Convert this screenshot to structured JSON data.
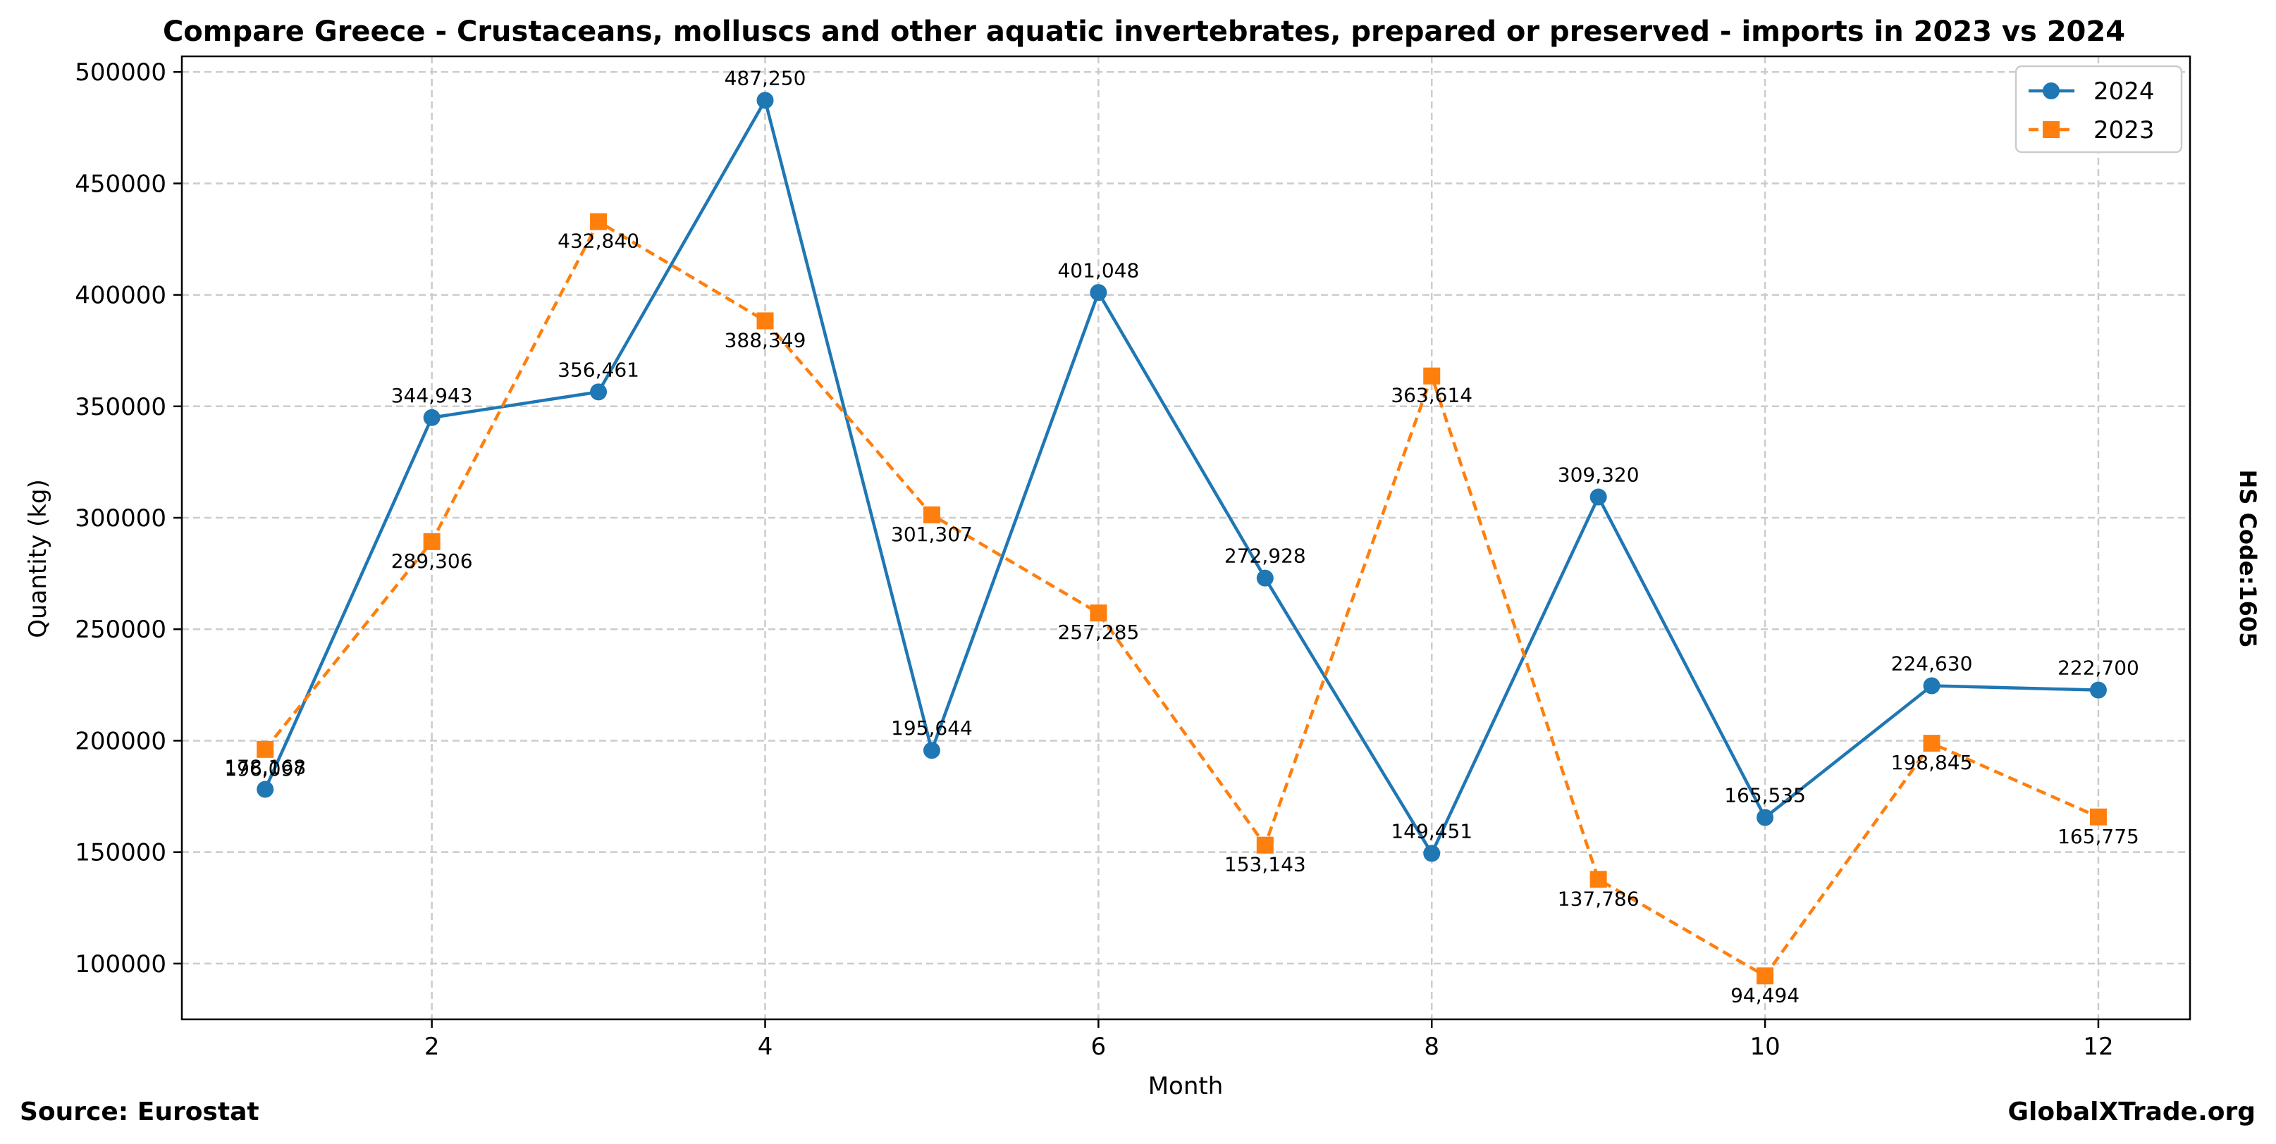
{
  "chart_data": {
    "type": "line",
    "title": "Compare Greece - Crustaceans, molluscs and other aquatic invertebrates, prepared or preserved - imports in 2023 vs 2024",
    "xlabel": "Month",
    "ylabel": "Quantity (kg)",
    "x": [
      1,
      2,
      3,
      4,
      5,
      6,
      7,
      8,
      9,
      10,
      11,
      12
    ],
    "xlim": [
      0.5,
      12.55
    ],
    "ylim": [
      75000,
      507000
    ],
    "xticks": [
      2,
      4,
      6,
      8,
      10,
      12
    ],
    "yticks": [
      100000,
      150000,
      200000,
      250000,
      300000,
      350000,
      400000,
      450000,
      500000
    ],
    "grid": true,
    "legend_position": "top-right",
    "series": [
      {
        "name": "2024",
        "color": "#1f77b4",
        "marker": "circle",
        "line_style": "solid",
        "values": [
          178168,
          344943,
          356461,
          487250,
          195644,
          401048,
          272928,
          149451,
          309320,
          165535,
          224630,
          222700
        ],
        "labels": [
          "178,168",
          "344,943",
          "356,461",
          "487,250",
          "195,644",
          "401,048",
          "272,928",
          "149,451",
          "309,320",
          "165,535",
          "224,630",
          "222,700"
        ]
      },
      {
        "name": "2023",
        "color": "#ff7f0e",
        "marker": "square",
        "line_style": "dashed",
        "values": [
          196097,
          289306,
          432840,
          388349,
          301307,
          257285,
          153143,
          363614,
          137786,
          94494,
          198845,
          165775
        ],
        "labels": [
          "196,097",
          "289,306",
          "432,840",
          "388,349",
          "301,307",
          "257,285",
          "153,143",
          "363,614",
          "137,786",
          "94,494",
          "198,845",
          "165,775"
        ]
      }
    ]
  },
  "footer": {
    "source": "Source: Eurostat",
    "brand": "GlobalXTrade.org"
  },
  "side_label": "HS Code:1605"
}
